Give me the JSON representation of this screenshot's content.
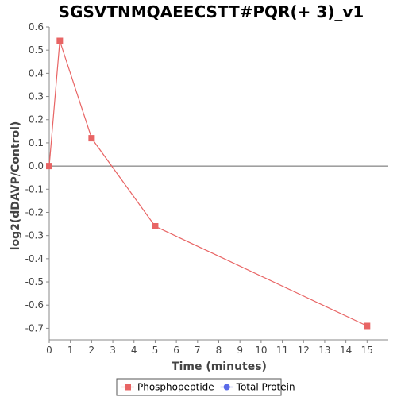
{
  "colors": {
    "background": "#ffffff",
    "axis": "#888888",
    "zero_line": "#666666",
    "phosphopeptide": "#e86464",
    "total_protein": "#5a6ae8"
  },
  "chart_data": {
    "type": "line",
    "title": "SGSVTNMQAEECSTT#PQR(+ 3)_v1",
    "xlabel": "Time (minutes)",
    "ylabel": "log2(dDAVP/Control)",
    "xlim": [
      0,
      16
    ],
    "ylim": [
      -0.75,
      0.6
    ],
    "x_ticks": [
      0,
      1,
      2,
      3,
      4,
      5,
      6,
      7,
      8,
      9,
      10,
      11,
      12,
      13,
      14,
      15
    ],
    "y_ticks": [
      0.6,
      0.5,
      0.4,
      0.3,
      0.2,
      0.1,
      0.0,
      -0.1,
      -0.2,
      -0.3,
      -0.4,
      -0.5,
      -0.6,
      -0.7
    ],
    "grid": false,
    "zero_line": true,
    "legend_position": "bottom",
    "series": [
      {
        "name": "Phosphopeptide",
        "marker": "square",
        "color": "#e86464",
        "x": [
          0,
          0.5,
          2,
          5,
          15
        ],
        "y": [
          0.0,
          0.54,
          0.12,
          -0.26,
          -0.69
        ]
      },
      {
        "name": "Total Protein",
        "marker": "circle",
        "color": "#5a6ae8",
        "x": [],
        "y": []
      }
    ]
  }
}
